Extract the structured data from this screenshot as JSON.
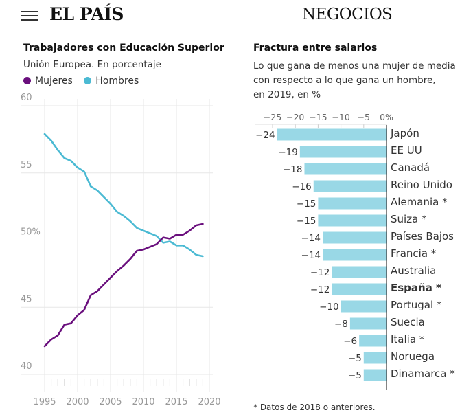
{
  "header": {
    "brand": "EL PAÍS",
    "section": "NEGOCIOS"
  },
  "colors": {
    "mujeres": "#6a0f7d",
    "hombres": "#4bbad3",
    "bar": "#99d8e6"
  },
  "left": {
    "title": "Trabajadores con Educación Superior",
    "subtitle": "Unión Europea. En porcentaje",
    "legend": [
      "Mujeres",
      "Hombres"
    ]
  },
  "right": {
    "title": "Fractura entre salarios",
    "subtitle": [
      "Lo que gana de menos una mujer de media",
      "con respecto a lo que gana un hombre,",
      "en 2019, en %"
    ],
    "footnote": "* Datos de 2018 o anteriores."
  },
  "chart_data": [
    {
      "type": "line",
      "title": "Trabajadores con Educación Superior",
      "subtitle": "Unión Europea. En porcentaje",
      "xlim": [
        1995,
        2020
      ],
      "ylim": [
        40,
        60
      ],
      "x_ticks": [
        "1995",
        "2000",
        "2005",
        "2010",
        "2015",
        "2020"
      ],
      "y_ticks": [
        {
          "v": 60,
          "label": "60"
        },
        {
          "v": 55,
          "label": "55"
        },
        {
          "v": 50,
          "label": "50%"
        },
        {
          "v": 45,
          "label": "45"
        },
        {
          "v": 40,
          "label": "40"
        }
      ],
      "reference_line": 50,
      "grid": true,
      "legend_position": "top-left",
      "series": [
        {
          "name": "Mujeres",
          "x": [
            1995,
            1996,
            1997,
            1998,
            1999,
            2000,
            2001,
            2002,
            2003,
            2004,
            2005,
            2006,
            2007,
            2008,
            2009,
            2010,
            2011,
            2012,
            2013,
            2014,
            2015,
            2016,
            2017,
            2018,
            2019
          ],
          "y": [
            42.1,
            42.6,
            42.9,
            43.7,
            43.8,
            44.4,
            44.8,
            45.9,
            46.2,
            46.7,
            47.2,
            47.7,
            48.1,
            48.6,
            49.2,
            49.3,
            49.5,
            49.7,
            50.2,
            50.1,
            50.4,
            50.4,
            50.7,
            51.1,
            51.2
          ]
        },
        {
          "name": "Hombres",
          "x": [
            1995,
            1996,
            1997,
            1998,
            1999,
            2000,
            2001,
            2002,
            2003,
            2004,
            2005,
            2006,
            2007,
            2008,
            2009,
            2010,
            2011,
            2012,
            2013,
            2014,
            2015,
            2016,
            2017,
            2018,
            2019
          ],
          "y": [
            57.9,
            57.4,
            56.7,
            56.1,
            55.9,
            55.4,
            55.1,
            54.0,
            53.7,
            53.2,
            52.7,
            52.1,
            51.8,
            51.4,
            50.9,
            50.7,
            50.5,
            50.3,
            49.8,
            49.9,
            49.6,
            49.6,
            49.3,
            48.9,
            48.8
          ]
        }
      ]
    },
    {
      "type": "bar",
      "orientation": "horizontal",
      "title": "Fractura entre salarios",
      "xlim": [
        -25,
        0
      ],
      "x_ticks": [
        "−25",
        "−20",
        "−15",
        "−10",
        "−5",
        "0%"
      ],
      "categories": [
        "Japón",
        "EE UU",
        "Canadá",
        "Reino Unido",
        "Alemania *",
        "Suiza *",
        "Países Bajos",
        "Francia *",
        "Australia",
        "España *",
        "Portugal *",
        "Suecia",
        "Italia *",
        "Noruega",
        "Dinamarca *"
      ],
      "values": [
        -24,
        -19,
        -18,
        -16,
        -15,
        -15,
        -14,
        -14,
        -12,
        -12,
        -10,
        -8,
        -6,
        -5,
        -5
      ],
      "value_labels": [
        "−24",
        "−19",
        "−18",
        "−16",
        "−15",
        "−15",
        "−14",
        "−14",
        "−12",
        "−12",
        "−10",
        "−8",
        "−6",
        "−5",
        "−5"
      ],
      "highlight": "España *"
    }
  ]
}
